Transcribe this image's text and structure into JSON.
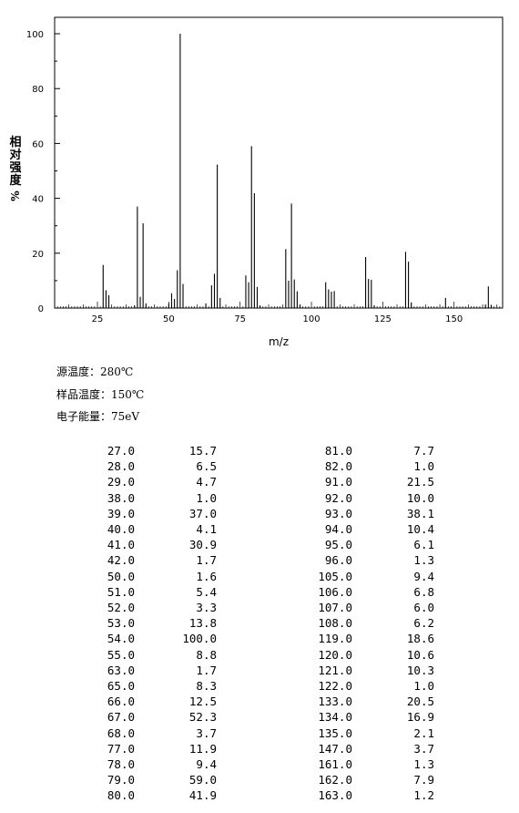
{
  "chart_data": {
    "type": "bar",
    "xlabel": "m/z",
    "ylabel": "相对强度",
    "ylabel_unit": "%",
    "xlim": [
      10,
      167
    ],
    "ylim": [
      0,
      100
    ],
    "xticks": [
      25,
      50,
      75,
      100,
      125,
      150
    ],
    "yticks": [
      0,
      20,
      40,
      60,
      80,
      100
    ],
    "points": [
      {
        "mz": 27.0,
        "int": 15.7
      },
      {
        "mz": 28.0,
        "int": 6.5
      },
      {
        "mz": 29.0,
        "int": 4.7
      },
      {
        "mz": 38.0,
        "int": 1.0
      },
      {
        "mz": 39.0,
        "int": 37.0
      },
      {
        "mz": 40.0,
        "int": 4.1
      },
      {
        "mz": 41.0,
        "int": 30.9
      },
      {
        "mz": 42.0,
        "int": 1.7
      },
      {
        "mz": 50.0,
        "int": 1.6
      },
      {
        "mz": 51.0,
        "int": 5.4
      },
      {
        "mz": 52.0,
        "int": 3.3
      },
      {
        "mz": 53.0,
        "int": 13.8
      },
      {
        "mz": 54.0,
        "int": 100.0
      },
      {
        "mz": 55.0,
        "int": 8.8
      },
      {
        "mz": 63.0,
        "int": 1.7
      },
      {
        "mz": 65.0,
        "int": 8.3
      },
      {
        "mz": 66.0,
        "int": 12.5
      },
      {
        "mz": 67.0,
        "int": 52.3
      },
      {
        "mz": 68.0,
        "int": 3.7
      },
      {
        "mz": 77.0,
        "int": 11.9
      },
      {
        "mz": 78.0,
        "int": 9.4
      },
      {
        "mz": 79.0,
        "int": 59.0
      },
      {
        "mz": 80.0,
        "int": 41.9
      },
      {
        "mz": 81.0,
        "int": 7.7
      },
      {
        "mz": 82.0,
        "int": 1.0
      },
      {
        "mz": 91.0,
        "int": 21.5
      },
      {
        "mz": 92.0,
        "int": 10.0
      },
      {
        "mz": 93.0,
        "int": 38.1
      },
      {
        "mz": 94.0,
        "int": 10.4
      },
      {
        "mz": 95.0,
        "int": 6.1
      },
      {
        "mz": 96.0,
        "int": 1.3
      },
      {
        "mz": 105.0,
        "int": 9.4
      },
      {
        "mz": 106.0,
        "int": 6.8
      },
      {
        "mz": 107.0,
        "int": 6.0
      },
      {
        "mz": 108.0,
        "int": 6.2
      },
      {
        "mz": 119.0,
        "int": 18.6
      },
      {
        "mz": 120.0,
        "int": 10.6
      },
      {
        "mz": 121.0,
        "int": 10.3
      },
      {
        "mz": 122.0,
        "int": 1.0
      },
      {
        "mz": 133.0,
        "int": 20.5
      },
      {
        "mz": 134.0,
        "int": 16.9
      },
      {
        "mz": 135.0,
        "int": 2.1
      },
      {
        "mz": 147.0,
        "int": 3.7
      },
      {
        "mz": 161.0,
        "int": 1.3
      },
      {
        "mz": 162.0,
        "int": 7.9
      },
      {
        "mz": 163.0,
        "int": 1.2
      }
    ]
  },
  "conditions": {
    "source_temp": "源温度：280℃",
    "sample_temp": "样品温度：150℃",
    "electron_energy": "电子能量：75eV"
  },
  "peak_table": {
    "left": [
      [
        "27.0",
        "15.7"
      ],
      [
        "28.0",
        "6.5"
      ],
      [
        "29.0",
        "4.7"
      ],
      [
        "38.0",
        "1.0"
      ],
      [
        "39.0",
        "37.0"
      ],
      [
        "40.0",
        "4.1"
      ],
      [
        "41.0",
        "30.9"
      ],
      [
        "42.0",
        "1.7"
      ],
      [
        "50.0",
        "1.6"
      ],
      [
        "51.0",
        "5.4"
      ],
      [
        "52.0",
        "3.3"
      ],
      [
        "53.0",
        "13.8"
      ],
      [
        "54.0",
        "100.0"
      ],
      [
        "55.0",
        "8.8"
      ],
      [
        "63.0",
        "1.7"
      ],
      [
        "65.0",
        "8.3"
      ],
      [
        "66.0",
        "12.5"
      ],
      [
        "67.0",
        "52.3"
      ],
      [
        "68.0",
        "3.7"
      ],
      [
        "77.0",
        "11.9"
      ],
      [
        "78.0",
        "9.4"
      ],
      [
        "79.0",
        "59.0"
      ],
      [
        "80.0",
        "41.9"
      ]
    ],
    "right": [
      [
        "81.0",
        "7.7"
      ],
      [
        "82.0",
        "1.0"
      ],
      [
        "91.0",
        "21.5"
      ],
      [
        "92.0",
        "10.0"
      ],
      [
        "93.0",
        "38.1"
      ],
      [
        "94.0",
        "10.4"
      ],
      [
        "95.0",
        "6.1"
      ],
      [
        "96.0",
        "1.3"
      ],
      [
        "105.0",
        "9.4"
      ],
      [
        "106.0",
        "6.8"
      ],
      [
        "107.0",
        "6.0"
      ],
      [
        "108.0",
        "6.2"
      ],
      [
        "119.0",
        "18.6"
      ],
      [
        "120.0",
        "10.6"
      ],
      [
        "121.0",
        "10.3"
      ],
      [
        "122.0",
        "1.0"
      ],
      [
        "133.0",
        "20.5"
      ],
      [
        "134.0",
        "16.9"
      ],
      [
        "135.0",
        "2.1"
      ],
      [
        "147.0",
        "3.7"
      ],
      [
        "161.0",
        "1.3"
      ],
      [
        "162.0",
        "7.9"
      ],
      [
        "163.0",
        "1.2"
      ]
    ]
  }
}
